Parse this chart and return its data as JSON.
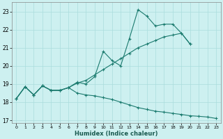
{
  "xlabel": "Humidex (Indice chaleur)",
  "bg_color": "#cdf0f0",
  "line_color": "#1a7a6e",
  "grid_color": "#aadddd",
  "xlim": [
    -0.5,
    23.5
  ],
  "ylim": [
    16.85,
    23.5
  ],
  "yticks": [
    17,
    18,
    19,
    20,
    21,
    22,
    23
  ],
  "xticks": [
    0,
    1,
    2,
    3,
    4,
    5,
    6,
    7,
    8,
    9,
    10,
    11,
    12,
    13,
    14,
    15,
    16,
    17,
    18,
    19,
    20,
    21,
    22,
    23
  ],
  "series": [
    {
      "x": [
        0,
        1,
        2,
        3,
        4,
        5,
        6,
        7,
        8,
        9,
        10,
        11,
        12,
        13,
        14,
        15,
        16,
        17,
        18,
        19,
        20
      ],
      "y": [
        18.2,
        18.85,
        18.4,
        18.9,
        18.65,
        18.65,
        18.8,
        19.1,
        19.0,
        19.4,
        20.8,
        20.3,
        20.0,
        21.5,
        23.1,
        22.75,
        22.2,
        22.3,
        22.3,
        21.8,
        21.2
      ]
    },
    {
      "x": [
        0,
        1,
        2,
        3,
        4,
        5,
        6,
        7,
        8,
        9,
        10,
        11,
        12,
        13,
        14,
        15,
        16,
        17,
        18,
        19,
        20
      ],
      "y": [
        18.2,
        18.85,
        18.4,
        18.9,
        18.65,
        18.65,
        18.8,
        19.05,
        19.2,
        19.5,
        19.8,
        20.1,
        20.4,
        20.7,
        21.0,
        21.2,
        21.4,
        21.6,
        21.7,
        21.8,
        21.2
      ]
    },
    {
      "x": [
        0,
        1,
        2,
        3,
        4,
        5,
        6,
        7,
        8,
        9,
        10,
        11,
        12,
        13,
        14,
        15,
        16,
        17,
        18,
        19,
        20,
        21,
        22,
        23
      ],
      "y": [
        18.2,
        18.85,
        18.4,
        18.9,
        18.65,
        18.65,
        18.8,
        18.5,
        18.4,
        18.35,
        18.25,
        18.15,
        18.0,
        17.85,
        17.7,
        17.6,
        17.5,
        17.45,
        17.38,
        17.32,
        17.25,
        17.22,
        17.18,
        17.1
      ]
    }
  ]
}
